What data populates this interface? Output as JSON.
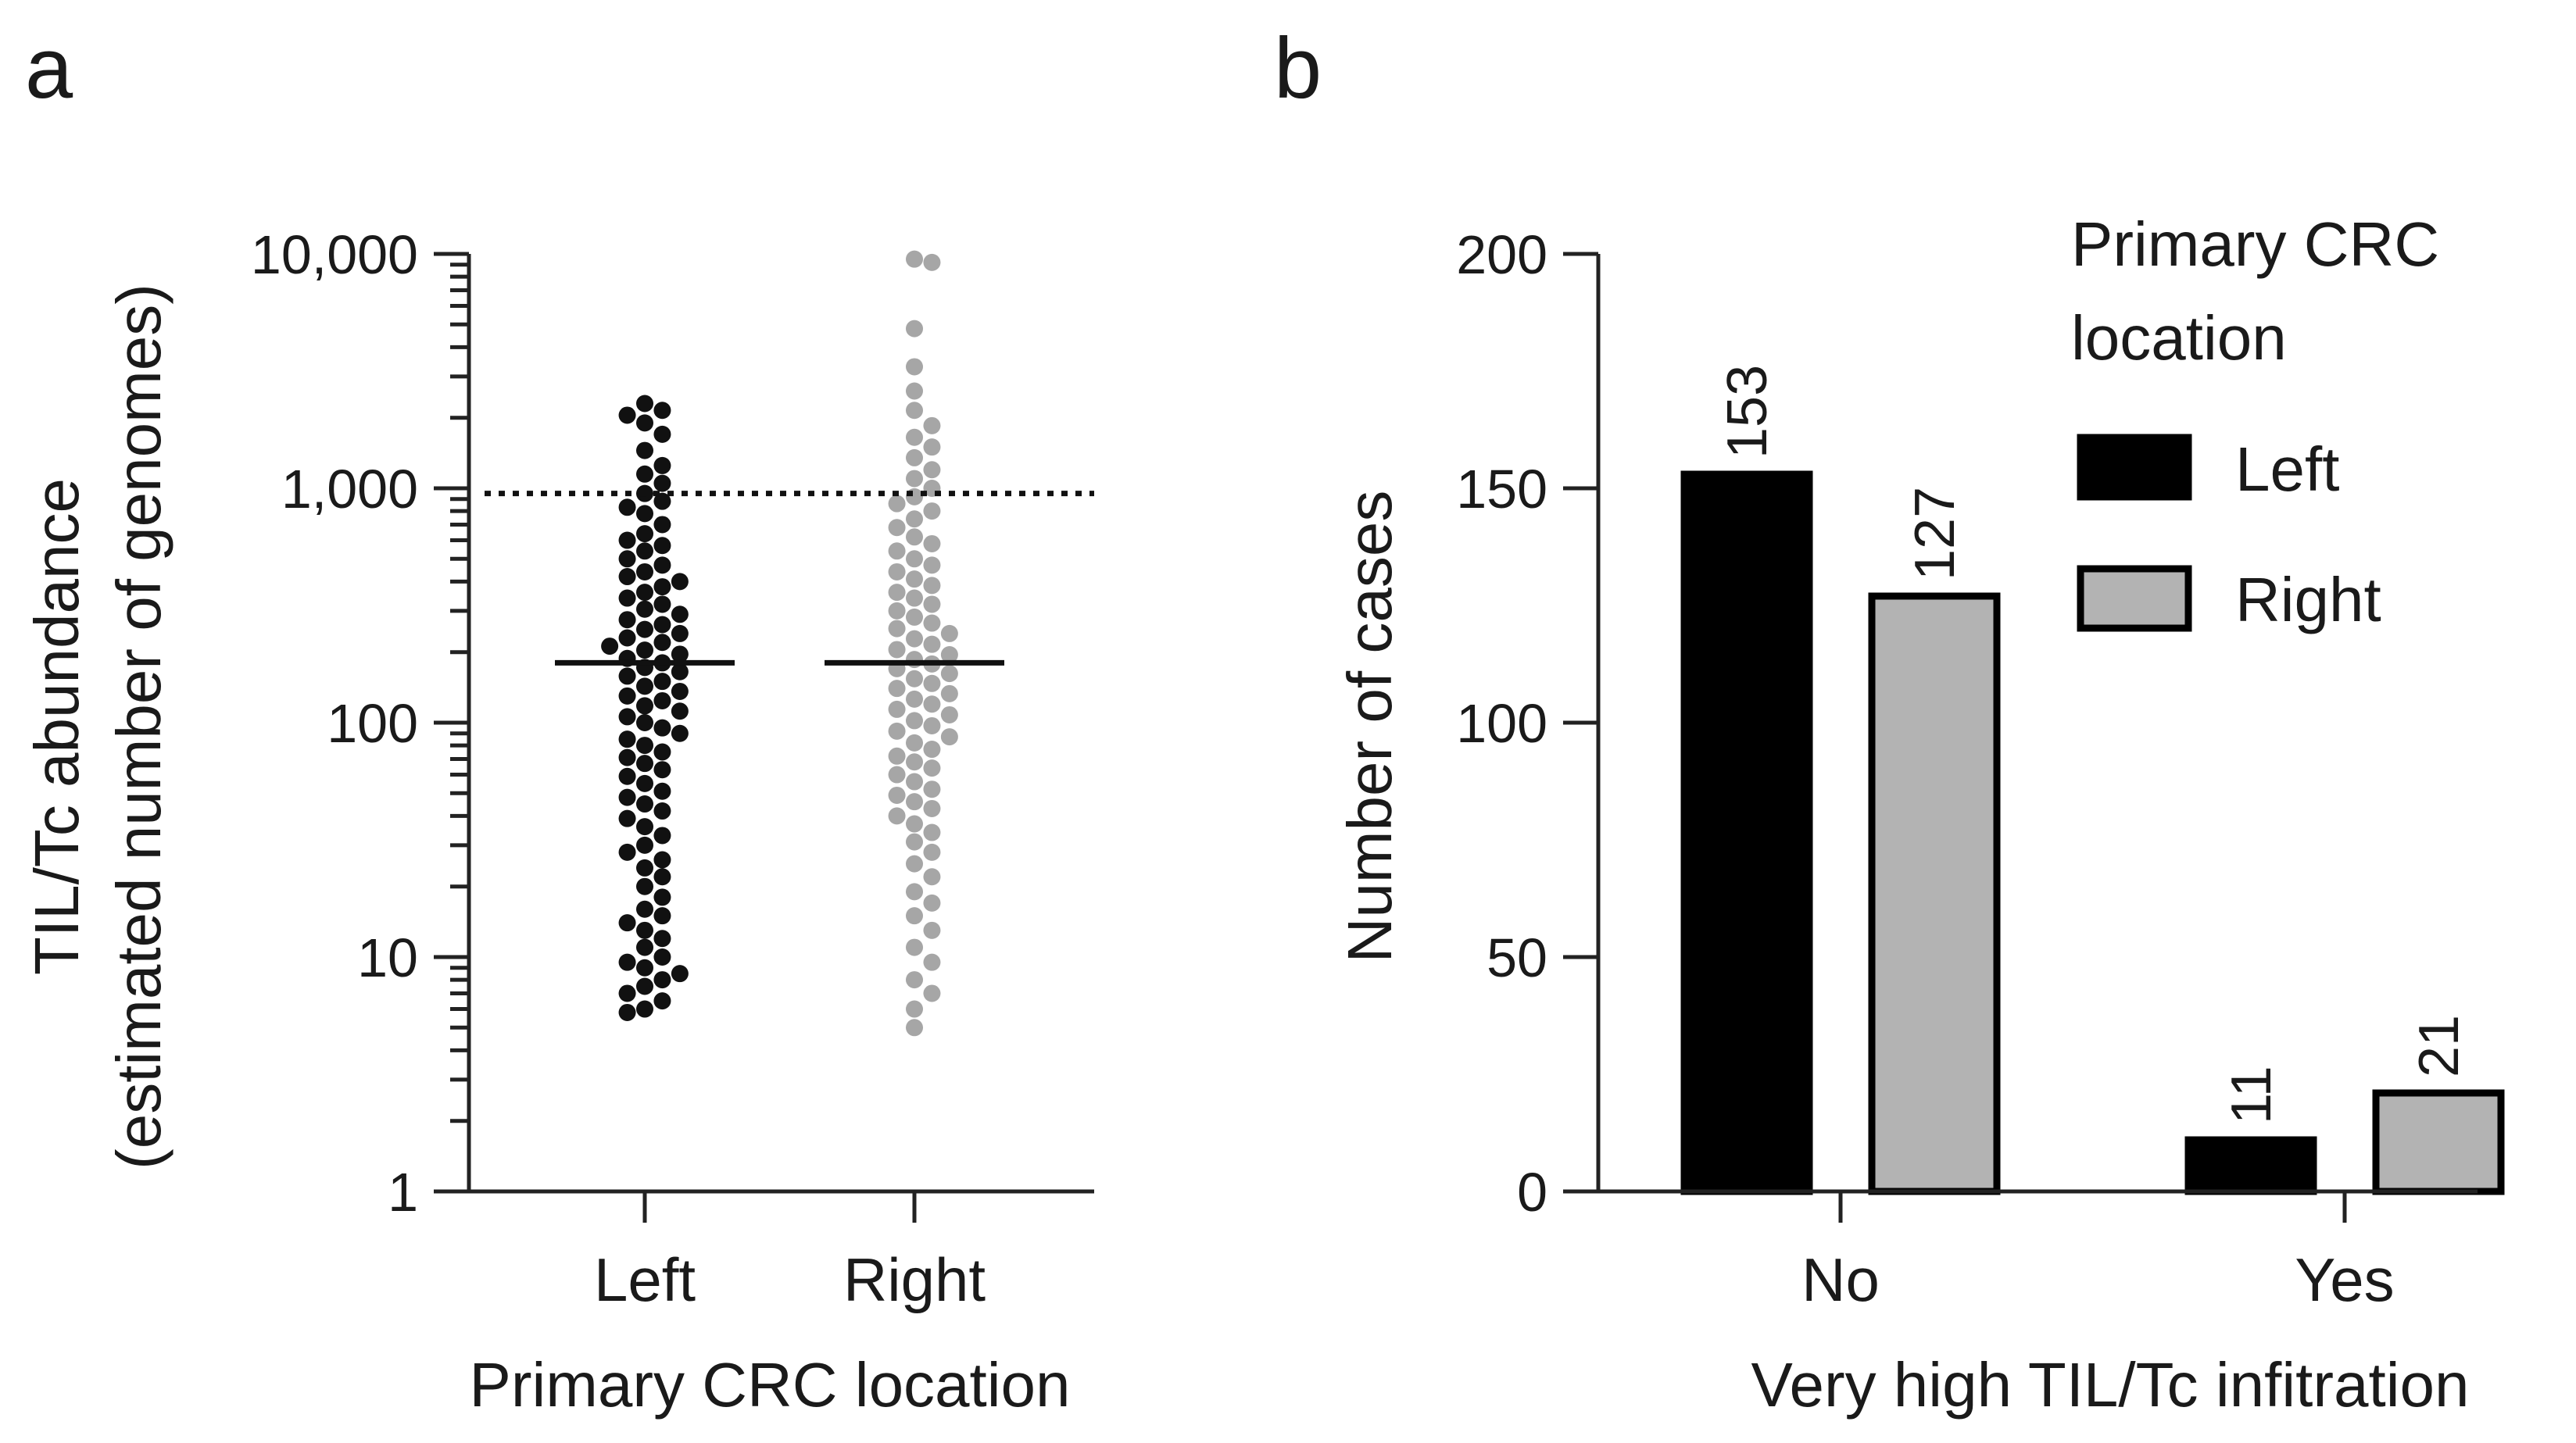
{
  "chart_data": [
    {
      "panel": "a",
      "type": "scatter",
      "subtype": "dot-plot",
      "xlabel": "Primary CRC location",
      "ylabel_line1": "TIL/Tc abundance",
      "ylabel_line2": "(estimated number of genomes)",
      "yscale": "log",
      "ylim": [
        1,
        10000
      ],
      "yticks": [
        1,
        10,
        100,
        1000,
        10000
      ],
      "ytick_labels": [
        "1",
        "10",
        "100",
        "1,000",
        "10,000"
      ],
      "categories": [
        "Left",
        "Right"
      ],
      "threshold_line": {
        "value": 950,
        "style": "dotted"
      },
      "series": [
        {
          "name": "Left",
          "color": "#111111",
          "median": 180,
          "values": [
            2300,
            2150,
            2050,
            1900,
            1700,
            1450,
            1250,
            1150,
            1050,
            950,
            880,
            830,
            780,
            700,
            640,
            600,
            570,
            540,
            500,
            470,
            440,
            420,
            400,
            380,
            360,
            340,
            320,
            305,
            290,
            275,
            262,
            250,
            240,
            230,
            220,
            212,
            204,
            196,
            188,
            180,
            172,
            165,
            158,
            150,
            143,
            136,
            130,
            124,
            118,
            112,
            106,
            100,
            95,
            90,
            85,
            80,
            75,
            71,
            67,
            63,
            59,
            55,
            51,
            48,
            45,
            42,
            39,
            36,
            33,
            30,
            28,
            26,
            24,
            22,
            20,
            18,
            16,
            15,
            14,
            13,
            12,
            11,
            10,
            9.5,
            9,
            8.5,
            8,
            7.5,
            7,
            6.5,
            6,
            5.8
          ]
        },
        {
          "name": "Right",
          "color": "#a6a6a6",
          "median": 180,
          "values": [
            9500,
            9200,
            4800,
            3300,
            2600,
            2150,
            1850,
            1650,
            1500,
            1350,
            1200,
            1100,
            1000,
            920,
            860,
            800,
            740,
            680,
            620,
            580,
            540,
            500,
            470,
            440,
            410,
            385,
            360,
            340,
            320,
            300,
            282,
            266,
            252,
            240,
            228,
            216,
            205,
            195,
            186,
            178,
            170,
            162,
            154,
            147,
            140,
            133,
            126,
            120,
            114,
            108,
            102,
            97,
            92,
            87,
            82,
            77,
            72,
            68,
            64,
            60,
            56,
            52,
            49,
            46,
            43,
            40,
            37,
            34,
            31,
            28,
            25,
            22,
            19,
            17,
            15,
            13,
            11,
            9.5,
            8,
            7,
            6,
            5
          ]
        }
      ]
    },
    {
      "panel": "b",
      "type": "bar",
      "xlabel": "Very high TIL/Tc infitration",
      "ylabel": "Number of cases",
      "ylim": [
        0,
        200
      ],
      "yticks": [
        0,
        50,
        100,
        150,
        200
      ],
      "categories": [
        "No",
        "Yes"
      ],
      "legend": {
        "title_line1": "Primary CRC",
        "title_line2": "location",
        "placement": "top-right"
      },
      "series": [
        {
          "name": "Left",
          "color": "#000000",
          "values": [
            153,
            11
          ]
        },
        {
          "name": "Right",
          "color": "#b3b3b3",
          "values": [
            127,
            21
          ]
        }
      ]
    }
  ]
}
